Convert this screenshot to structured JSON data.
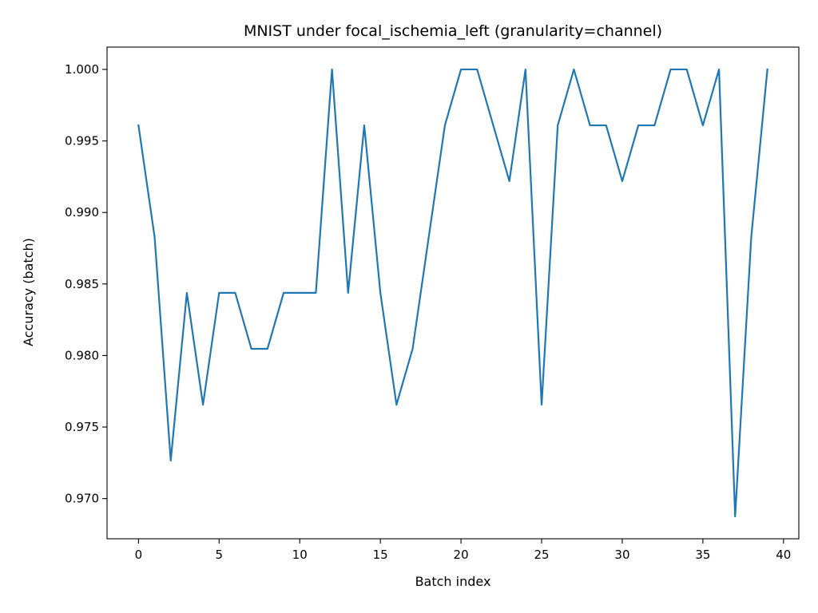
{
  "chart_data": {
    "type": "line",
    "title": "MNIST under focal_ischemia_left (granularity=channel)",
    "xlabel": "Batch index",
    "ylabel": "Accuracy (batch)",
    "xlim": [
      -1.95,
      40.95
    ],
    "ylim": [
      0.96719,
      1.00156
    ],
    "xticks": [
      0,
      5,
      10,
      15,
      20,
      25,
      30,
      35,
      40
    ],
    "xtick_labels": [
      "0",
      "5",
      "10",
      "15",
      "20",
      "25",
      "30",
      "35",
      "40"
    ],
    "yticks": [
      0.97,
      0.975,
      0.98,
      0.985,
      0.99,
      0.995,
      1.0
    ],
    "ytick_labels": [
      "0.970",
      "0.975",
      "0.980",
      "0.985",
      "0.990",
      "0.995",
      "1.000"
    ],
    "grid": false,
    "series": [
      {
        "name": "accuracy",
        "color": "#1f77b4",
        "x": [
          0,
          1,
          2,
          3,
          4,
          5,
          6,
          7,
          8,
          9,
          10,
          11,
          12,
          13,
          14,
          15,
          16,
          17,
          18,
          19,
          20,
          21,
          22,
          23,
          24,
          25,
          26,
          27,
          28,
          29,
          30,
          31,
          32,
          33,
          34,
          35,
          36,
          37,
          38,
          39
        ],
        "values": [
          0.99609,
          0.98828,
          0.97266,
          0.98438,
          0.97656,
          0.98438,
          0.98438,
          0.98047,
          0.98047,
          0.98438,
          0.98438,
          0.98438,
          1.0,
          0.98438,
          0.99609,
          0.98438,
          0.97656,
          0.98047,
          0.98828,
          0.99609,
          1.0,
          1.0,
          0.99609,
          0.99219,
          1.0,
          0.97656,
          0.99609,
          1.0,
          0.99609,
          0.99609,
          0.99219,
          0.99609,
          0.99609,
          1.0,
          1.0,
          0.99609,
          1.0,
          0.96875,
          0.98828,
          1.0
        ]
      }
    ]
  }
}
